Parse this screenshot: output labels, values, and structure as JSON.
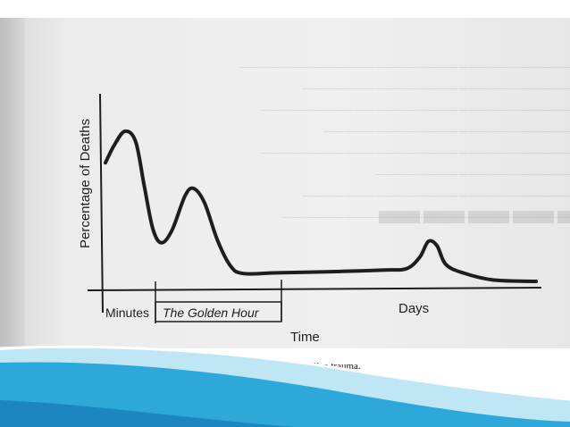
{
  "caption": "Trimodal distribution of mortality after civilian trauma.",
  "chart_data": {
    "type": "line",
    "ylabel": "Percentage of Deaths",
    "xlabel": "Time",
    "period_labels": [
      "Minutes",
      "The Golden Hour",
      "Days"
    ],
    "curve": [
      [
        0.0,
        0.78
      ],
      [
        0.02,
        0.9
      ],
      [
        0.045,
        1.0
      ],
      [
        0.07,
        0.93
      ],
      [
        0.09,
        0.62
      ],
      [
        0.11,
        0.32
      ],
      [
        0.13,
        0.22
      ],
      [
        0.155,
        0.31
      ],
      [
        0.185,
        0.55
      ],
      [
        0.205,
        0.6
      ],
      [
        0.23,
        0.5
      ],
      [
        0.26,
        0.24
      ],
      [
        0.29,
        0.06
      ],
      [
        0.32,
        0.005
      ],
      [
        0.4,
        0.01
      ],
      [
        0.55,
        0.02
      ],
      [
        0.65,
        0.03
      ],
      [
        0.7,
        0.04
      ],
      [
        0.73,
        0.12
      ],
      [
        0.75,
        0.23
      ],
      [
        0.77,
        0.2
      ],
      [
        0.79,
        0.07
      ],
      [
        0.83,
        0.01
      ],
      [
        0.9,
        -0.04
      ],
      [
        1.0,
        -0.05
      ]
    ],
    "grid": false,
    "colors": {
      "ink": "#1e1e1e",
      "paper": "#ececec"
    }
  }
}
